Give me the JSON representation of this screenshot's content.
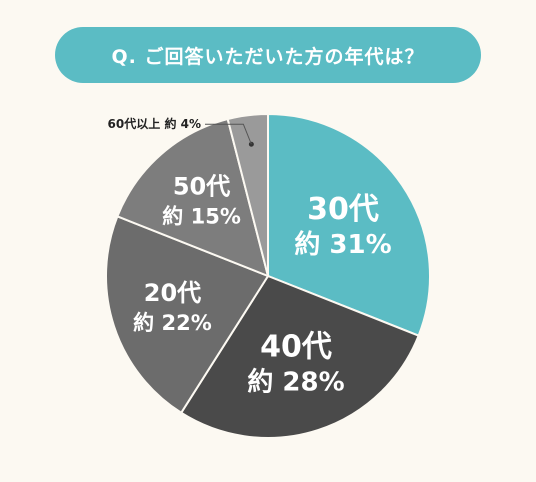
{
  "chart_data": {
    "type": "pie",
    "title": "Q. ご回答いただいた方の年代は？",
    "slices": [
      {
        "label": "30代",
        "value_text": "約 31%",
        "value": 31,
        "color": "#5bbcc4"
      },
      {
        "label": "40代",
        "value_text": "約 28%",
        "value": 28,
        "color": "#4a4a4a"
      },
      {
        "label": "20代",
        "value_text": "約 22%",
        "value": 22,
        "color": "#6c6c6c"
      },
      {
        "label": "50代",
        "value_text": "約 15%",
        "value": 15,
        "color": "#7d7d7d"
      },
      {
        "label": "60代以上",
        "value_text": "約 4%",
        "value": 4,
        "color": "#9a9a9a"
      }
    ],
    "start": "12 o'clock",
    "direction": "clockwise"
  }
}
